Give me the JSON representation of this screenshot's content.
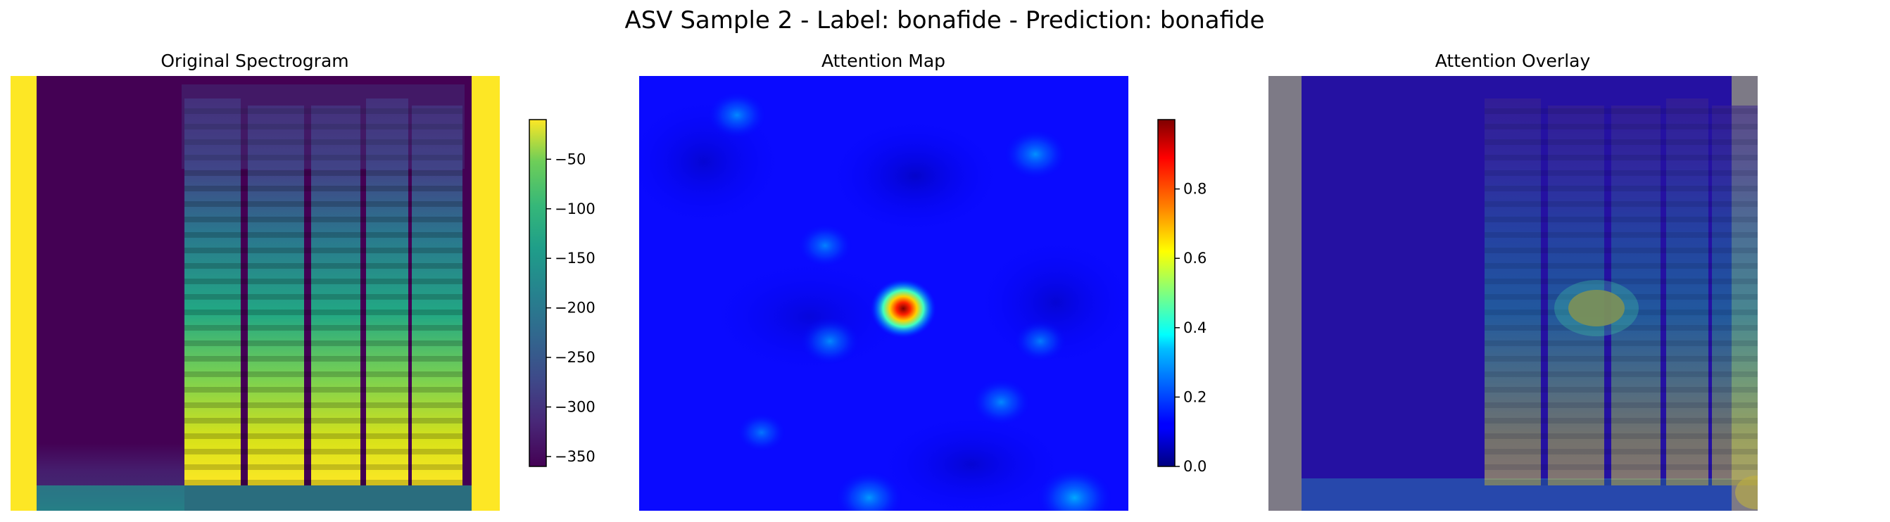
{
  "figure": {
    "suptitle": "ASV Sample 2 - Label: bonafide - Prediction: bonafide"
  },
  "panels": [
    {
      "title": "Original Spectrogram"
    },
    {
      "title": "Attention Map"
    },
    {
      "title": "Attention Overlay"
    }
  ],
  "colors": {
    "viridis_low": "#440154",
    "viridis_mid": "#21918c",
    "viridis_high": "#fde725",
    "jet_low": "#00007f",
    "jet_high": "#7f0000",
    "overlay_pad": "#958a6c"
  },
  "chart_data": [
    {
      "type": "heatmap",
      "title": "Original Spectrogram",
      "colormap": "viridis",
      "axes": "off",
      "colorbar": {
        "range": [
          -360,
          -10
        ],
        "ticks": [
          -50,
          -100,
          -150,
          -200,
          -250,
          -300,
          -350
        ],
        "tick_labels": [
          "−50",
          "−100",
          "−150",
          "−200",
          "−250",
          "−300",
          "−350"
        ]
      }
    },
    {
      "type": "heatmap",
      "title": "Attention Map",
      "colormap": "jet",
      "axes": "off",
      "colorbar": {
        "range": [
          0,
          1
        ],
        "ticks": [
          0.0,
          0.2,
          0.4,
          0.6,
          0.8
        ],
        "tick_labels": [
          "0.0",
          "0.2",
          "0.4",
          "0.6",
          "0.8"
        ]
      },
      "hotspots": [
        {
          "x": 0.54,
          "y": 0.535,
          "value": 1.0
        },
        {
          "x": 0.2,
          "y": 0.09,
          "value": 0.3
        },
        {
          "x": 0.81,
          "y": 0.18,
          "value": 0.35
        },
        {
          "x": 0.38,
          "y": 0.39,
          "value": 0.25
        },
        {
          "x": 0.39,
          "y": 0.61,
          "value": 0.3
        },
        {
          "x": 0.74,
          "y": 0.75,
          "value": 0.3
        },
        {
          "x": 0.47,
          "y": 0.97,
          "value": 0.4
        },
        {
          "x": 0.89,
          "y": 0.97,
          "value": 0.5
        },
        {
          "x": 0.82,
          "y": 0.61,
          "value": 0.22
        },
        {
          "x": 0.25,
          "y": 0.82,
          "value": 0.18
        }
      ]
    },
    {
      "type": "heatmap",
      "title": "Attention Overlay",
      "colormap": "viridis+jet blend",
      "axes": "off"
    }
  ]
}
